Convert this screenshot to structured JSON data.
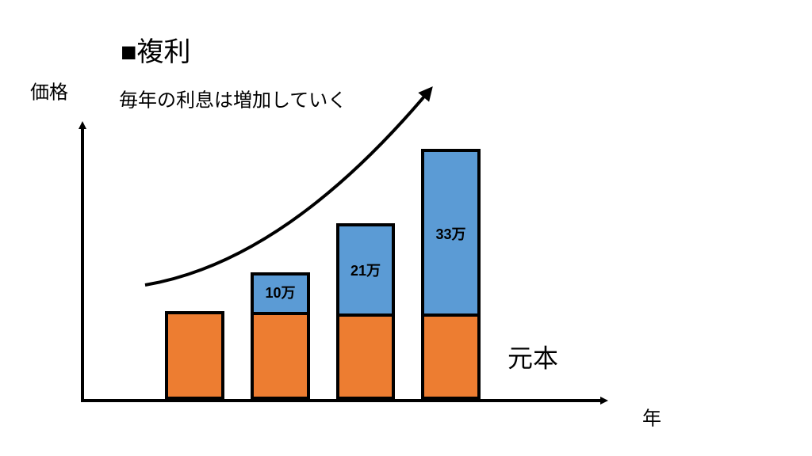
{
  "title": "■複利",
  "y_axis_label": "価格",
  "x_axis_label": "年",
  "annotation": "毎年の利息は増加していく",
  "principal_label": "元本",
  "interest_labels": [
    "10万",
    "21万",
    "33万"
  ]
}
